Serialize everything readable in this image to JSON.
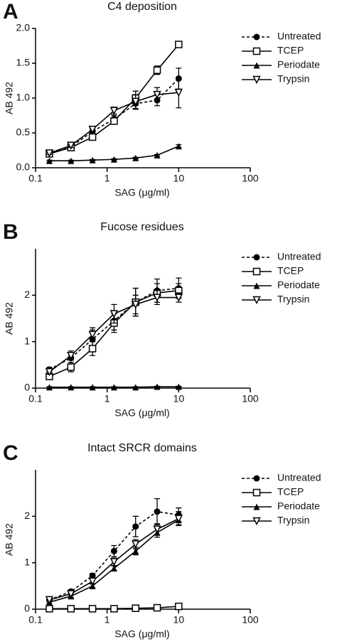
{
  "chart_data": [
    {
      "type": "line",
      "panel": "A",
      "title": "C4 deposition",
      "xlabel": "SAG (μg/ml)",
      "ylabel": "AB 492",
      "xscale": "log",
      "xlim": [
        0.1,
        100
      ],
      "xticks": [
        0.1,
        1,
        10,
        100
      ],
      "ylim": [
        0,
        2
      ],
      "yticks": [
        {
          "value": 0,
          "label": "0.0"
        },
        0.5,
        {
          "value": 1,
          "label": "1.0"
        },
        1.5,
        {
          "value": 2,
          "label": "2.0"
        }
      ],
      "x": [
        0.156,
        0.3125,
        0.625,
        1.25,
        2.5,
        5,
        10
      ],
      "series": [
        {
          "name": "Untreated",
          "color": "#000000",
          "marker": "circle",
          "dashed": true,
          "values": [
            0.2,
            0.3,
            0.52,
            0.7,
            0.92,
            0.97,
            1.28
          ],
          "errors": [
            0.02,
            0.03,
            0.04,
            0.05,
            0.08,
            0.08,
            0.15
          ]
        },
        {
          "name": "TCEP",
          "color": "#000000",
          "marker": "square",
          "dashed": false,
          "values": [
            0.2,
            0.29,
            0.44,
            0.67,
            1.0,
            1.4,
            1.77
          ],
          "errors": [
            0.02,
            0.03,
            0.03,
            0.04,
            0.1,
            0.06,
            0.04
          ]
        },
        {
          "name": "Periodate",
          "color": "#000000",
          "marker": "triangle",
          "dashed": false,
          "values": [
            0.1,
            0.1,
            0.11,
            0.12,
            0.14,
            0.18,
            0.31
          ],
          "errors": [
            0.01,
            0.01,
            0.01,
            0.01,
            0.01,
            0.01,
            0.02
          ]
        },
        {
          "name": "Trypsin",
          "color": "#000000",
          "marker": "triangle-down",
          "dashed": false,
          "values": [
            0.21,
            0.32,
            0.55,
            0.82,
            0.95,
            1.05,
            1.08
          ],
          "errors": [
            0.02,
            0.03,
            0.04,
            0.05,
            0.1,
            0.1,
            0.22
          ]
        }
      ]
    },
    {
      "type": "line",
      "panel": "B",
      "title": "Fucose residues",
      "xlabel": "SAG (μg/ml)",
      "ylabel": "AB 492",
      "xscale": "log",
      "xlim": [
        0.1,
        100
      ],
      "xticks": [
        0.1,
        1,
        10,
        100
      ],
      "ylim": [
        0,
        3
      ],
      "yticks": [
        0,
        1,
        2
      ],
      "x": [
        0.156,
        0.3125,
        0.625,
        1.25,
        2.5,
        5,
        10
      ],
      "series": [
        {
          "name": "Untreated",
          "color": "#000000",
          "marker": "circle",
          "dashed": true,
          "values": [
            0.4,
            0.65,
            1.05,
            1.45,
            1.85,
            2.1,
            2.15
          ],
          "errors": [
            0.05,
            0.1,
            0.2,
            0.2,
            0.3,
            0.25,
            0.22
          ]
        },
        {
          "name": "TCEP",
          "color": "#000000",
          "marker": "square",
          "dashed": false,
          "values": [
            0.25,
            0.45,
            0.85,
            1.4,
            1.85,
            2.05,
            2.1
          ],
          "errors": [
            0.05,
            0.1,
            0.15,
            0.2,
            0.3,
            0.2,
            0.15
          ]
        },
        {
          "name": "Periodate",
          "color": "#000000",
          "marker": "triangle",
          "dashed": false,
          "values": [
            0.02,
            0.02,
            0.02,
            0.02,
            0.02,
            0.03,
            0.03
          ],
          "errors": [
            0.01,
            0.01,
            0.01,
            0.01,
            0.01,
            0.01,
            0.01
          ]
        },
        {
          "name": "Trypsin",
          "color": "#000000",
          "marker": "triangle-down",
          "dashed": false,
          "values": [
            0.35,
            0.7,
            1.15,
            1.6,
            1.8,
            1.95,
            1.95
          ],
          "errors": [
            0.05,
            0.1,
            0.15,
            0.2,
            0.2,
            0.15,
            0.1
          ]
        }
      ]
    },
    {
      "type": "line",
      "panel": "C",
      "title": "Intact SRCR domains",
      "xlabel": "SAG (μg/ml)",
      "ylabel": "AB 492",
      "xscale": "log",
      "xlim": [
        0.1,
        100
      ],
      "xticks": [
        0.1,
        1,
        10,
        100
      ],
      "ylim": [
        0,
        3
      ],
      "yticks": [
        0,
        1,
        2
      ],
      "x": [
        0.156,
        0.3125,
        0.625,
        1.25,
        2.5,
        5,
        10
      ],
      "series": [
        {
          "name": "Untreated",
          "color": "#000000",
          "marker": "circle",
          "dashed": true,
          "values": [
            0.2,
            0.38,
            0.72,
            1.25,
            1.78,
            2.1,
            2.03
          ],
          "errors": [
            0.03,
            0.04,
            0.05,
            0.12,
            0.22,
            0.28,
            0.15
          ]
        },
        {
          "name": "TCEP",
          "color": "#000000",
          "marker": "square",
          "dashed": false,
          "values": [
            0.01,
            0.01,
            0.01,
            0.01,
            0.02,
            0.03,
            0.06
          ],
          "errors": [
            0.01,
            0.01,
            0.01,
            0.01,
            0.01,
            0.01,
            0.02
          ]
        },
        {
          "name": "Periodate",
          "color": "#000000",
          "marker": "triangle",
          "dashed": false,
          "values": [
            0.15,
            0.28,
            0.5,
            0.88,
            1.25,
            1.65,
            1.92
          ],
          "errors": [
            0.02,
            0.03,
            0.04,
            0.05,
            0.08,
            0.1,
            0.1
          ]
        },
        {
          "name": "Trypsin",
          "color": "#000000",
          "marker": "triangle-down",
          "dashed": false,
          "values": [
            0.2,
            0.33,
            0.6,
            1.02,
            1.4,
            1.72,
            1.95
          ],
          "errors": [
            0.02,
            0.03,
            0.05,
            0.08,
            0.1,
            0.12,
            0.15
          ]
        }
      ]
    }
  ]
}
